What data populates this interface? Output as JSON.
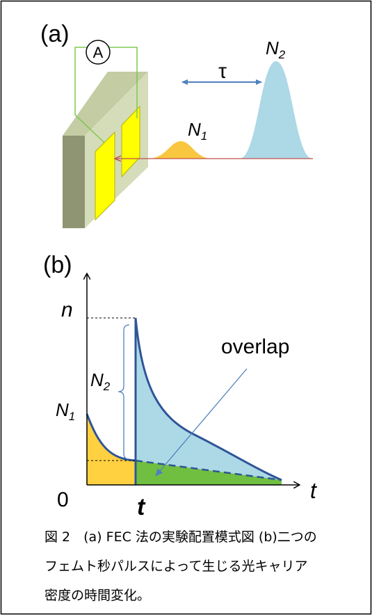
{
  "figure": {
    "panel_a": {
      "label": "(a)",
      "ammeter": "A",
      "delay": "τ",
      "pulse_2": {
        "base": "N",
        "sub": "2"
      },
      "pulse_1": {
        "base": "N",
        "sub": "1"
      }
    },
    "panel_b": {
      "label": "(b)",
      "y_axis": "n",
      "x_axis": "t",
      "origin": "0",
      "time_mark": "t",
      "n2": {
        "base": "N",
        "sub": "2"
      },
      "n1": {
        "base": "N",
        "sub": "1"
      },
      "overlap": "overlap"
    },
    "caption": [
      "図 2　(a) FEC 法の実験配置模式図 (b)二つの",
      "フェムト秒パルスによって生じる光キャリア",
      "密度の時間変化。"
    ]
  }
}
